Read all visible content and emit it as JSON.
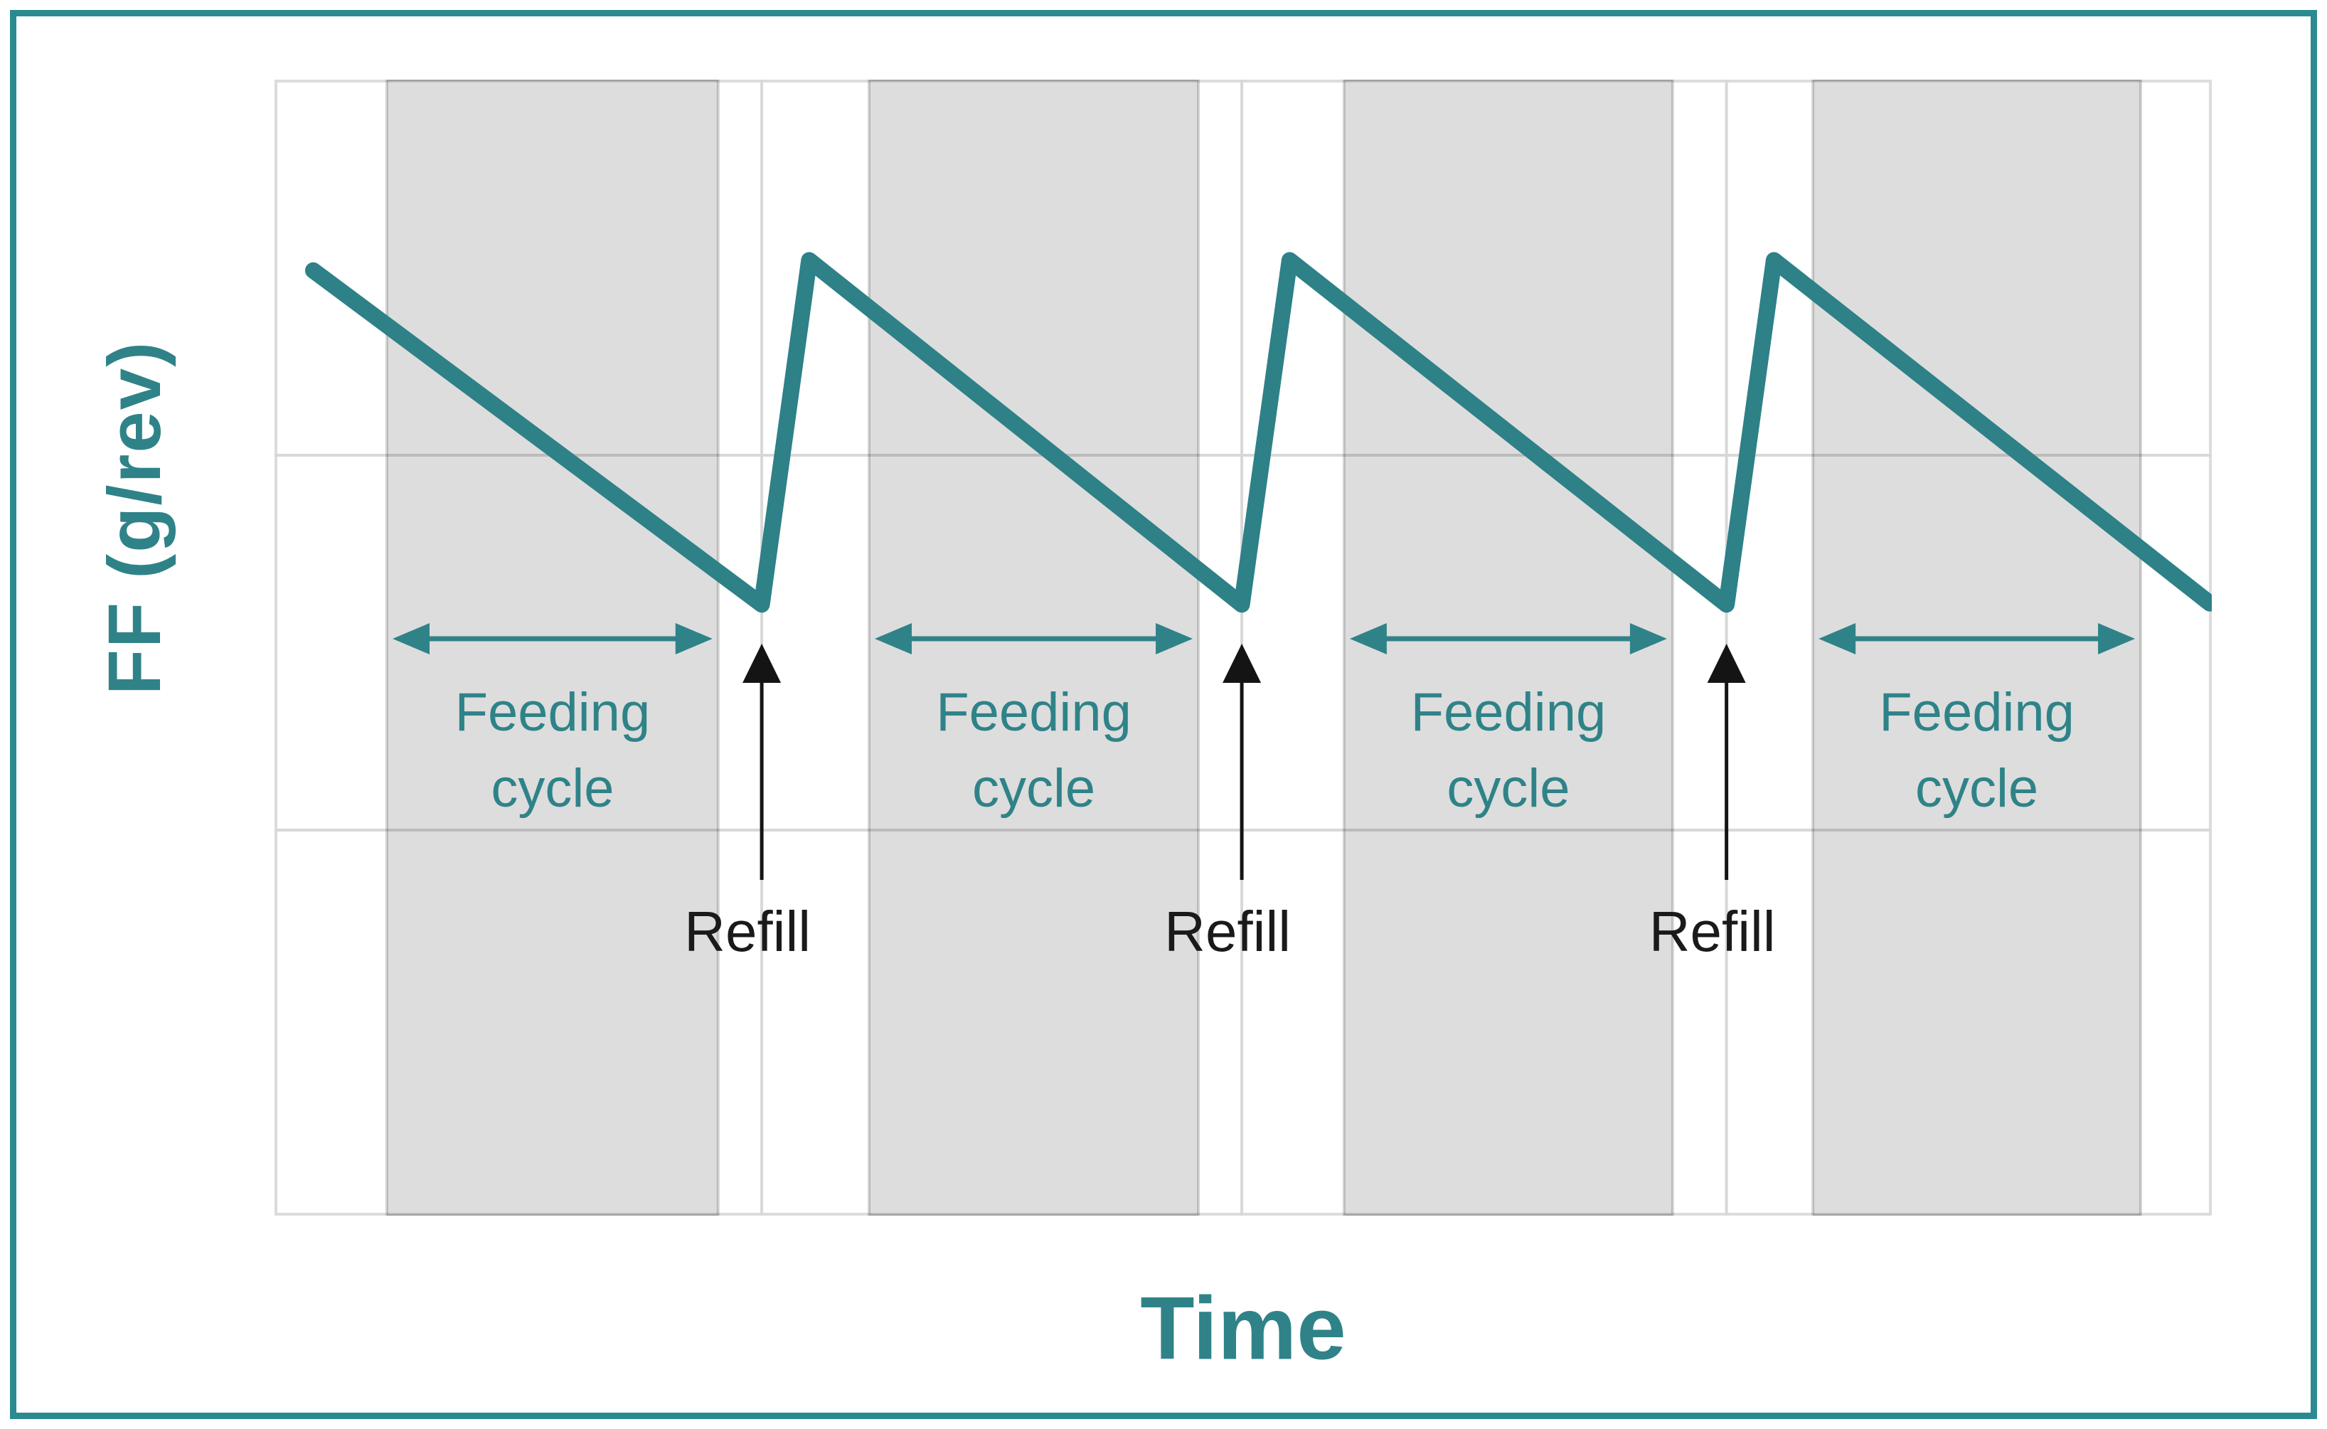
{
  "axis": {
    "y_label": "FF (g/rev)",
    "x_label": "Time"
  },
  "band_label": {
    "line1": "Feeding",
    "line2": "cycle"
  },
  "refill_label": "Refill",
  "colors": {
    "teal_accent": "#2F8388",
    "line_teal": "#2D8187",
    "figure_border_teal": "#2B8A90",
    "band_fill": "rgba(0,0,0,0.135)",
    "band_edge": "rgba(0,0,0,0.16)",
    "gridline": "#d8d8d8",
    "plot_border": "#dcdcdc",
    "refill_black": "#141414"
  },
  "chart_data": {
    "type": "line",
    "title": "",
    "xlabel": "Time",
    "ylabel": "FF (g/rev)",
    "legend": "none",
    "x_ticks": "none",
    "y_ticks": "none",
    "description": "Schematic sawtooth profile: feed factor FF declines steadily during each feeding cycle and jumps back up at each refill event.",
    "series": [
      {
        "name": "FF",
        "color": "#2D8187",
        "points_pct": [
          [
            2.0,
            16.8
          ],
          [
            25.15,
            46.2
          ],
          [
            27.6,
            15.9
          ],
          [
            49.93,
            46.2
          ],
          [
            52.4,
            15.9
          ],
          [
            74.95,
            46.2
          ],
          [
            77.4,
            15.9
          ],
          [
            99.9,
            46.1
          ]
        ]
      }
    ],
    "feeding_cycle_bands_pct": [
      [
        5.8,
        22.9
      ],
      [
        30.69,
        47.69
      ],
      [
        55.21,
        72.17
      ],
      [
        79.41,
        96.33
      ]
    ],
    "refill_x_pct": [
      25.15,
      49.93,
      74.95
    ],
    "h_gridlines_pct": [
      33.06,
      66.06
    ],
    "annotations": {
      "band_label": "Feeding cycle",
      "refill_label": "Refill"
    }
  }
}
